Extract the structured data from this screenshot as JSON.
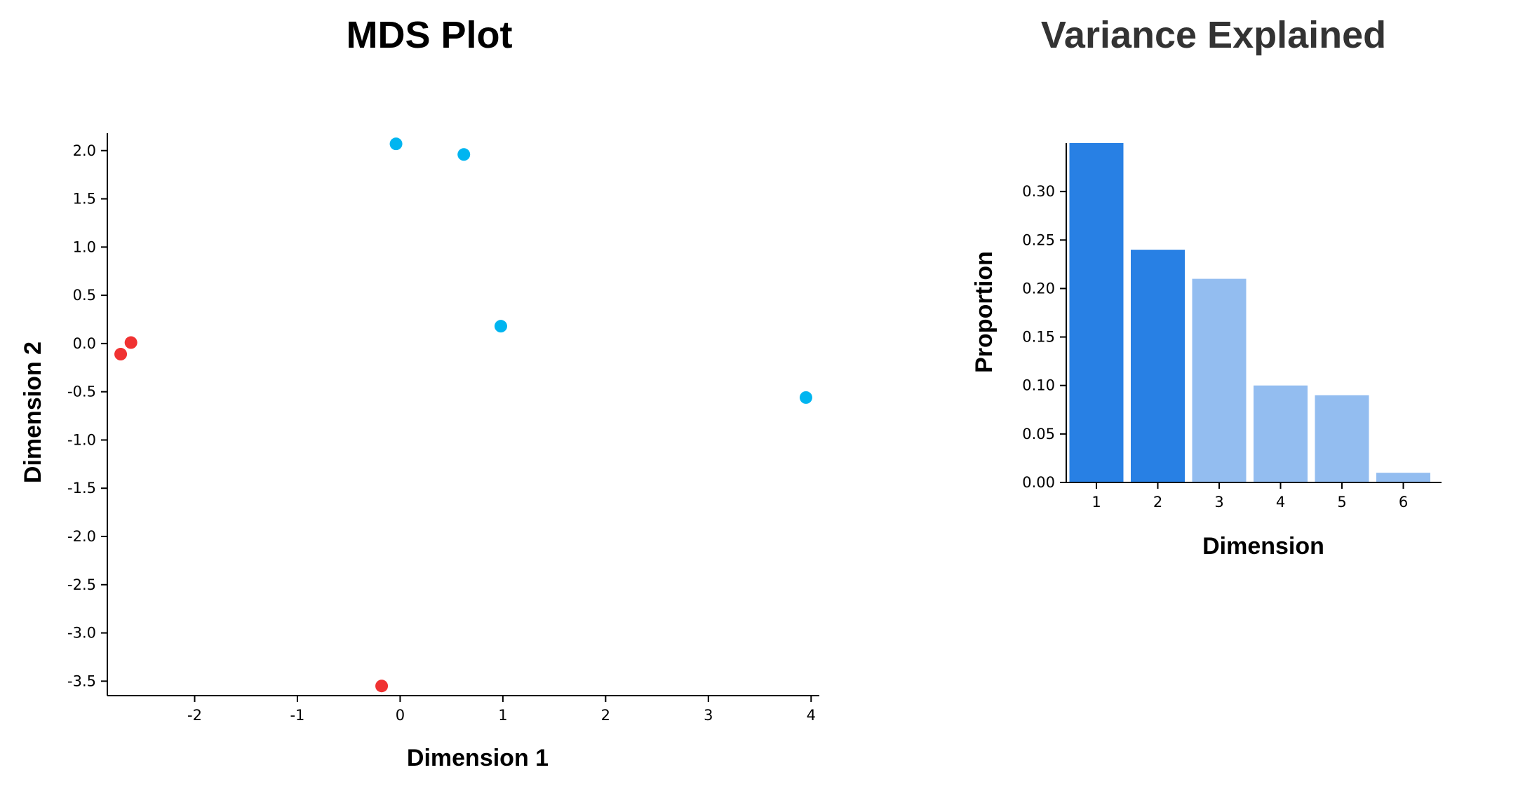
{
  "chart_data": [
    {
      "type": "scatter",
      "title": "MDS Plot",
      "xlabel": "Dimension 1",
      "ylabel": "Dimension 2",
      "xlim": [
        -2.85,
        4.08
      ],
      "ylim": [
        -3.65,
        2.18
      ],
      "xticks": [
        "-2",
        "-1",
        "0",
        "1",
        "2",
        "3",
        "4"
      ],
      "xtick_values": [
        -2,
        -1,
        0,
        1,
        2,
        3,
        4
      ],
      "yticks": [
        "2.0",
        "1.5",
        "1.0",
        "0.5",
        "0.0",
        "-0.5",
        "-1.0",
        "-1.5",
        "-2.0",
        "-2.5",
        "-3.0",
        "-3.5"
      ],
      "ytick_values": [
        2.0,
        1.5,
        1.0,
        0.5,
        0.0,
        -0.5,
        -1.0,
        -1.5,
        -2.0,
        -2.5,
        -3.0,
        -3.5
      ],
      "grid": false,
      "legend": "none",
      "groups": [
        {
          "color": "#f03232",
          "points": [
            {
              "x": -2.62,
              "y": 0.01
            },
            {
              "x": -2.72,
              "y": -0.11
            },
            {
              "x": -0.18,
              "y": -3.55
            }
          ]
        },
        {
          "color": "#00b5f0",
          "points": [
            {
              "x": -0.04,
              "y": 2.07
            },
            {
              "x": 0.62,
              "y": 1.96
            },
            {
              "x": 0.98,
              "y": 0.18
            },
            {
              "x": 3.95,
              "y": -0.56
            }
          ]
        }
      ]
    },
    {
      "type": "bar",
      "title": "Variance Explained",
      "xlabel": "Dimension",
      "ylabel": "Proportion",
      "categories": [
        "1",
        "2",
        "3",
        "4",
        "5",
        "6"
      ],
      "values": [
        0.35,
        0.24,
        0.21,
        0.1,
        0.09,
        0.01
      ],
      "colors": [
        "#2880e4",
        "#2880e4",
        "#93bdf0",
        "#93bdf0",
        "#93bdf0",
        "#93bdf0"
      ],
      "ylim": [
        0,
        0.35
      ],
      "yticks": [
        "0.00",
        "0.05",
        "0.10",
        "0.15",
        "0.20",
        "0.25",
        "0.30"
      ],
      "ytick_values": [
        0,
        0.05,
        0.1,
        0.15,
        0.2,
        0.25,
        0.3
      ],
      "grid": false,
      "legend": "none"
    }
  ],
  "colors": {
    "title_mds": "#000000",
    "title_variance": "#333333"
  }
}
